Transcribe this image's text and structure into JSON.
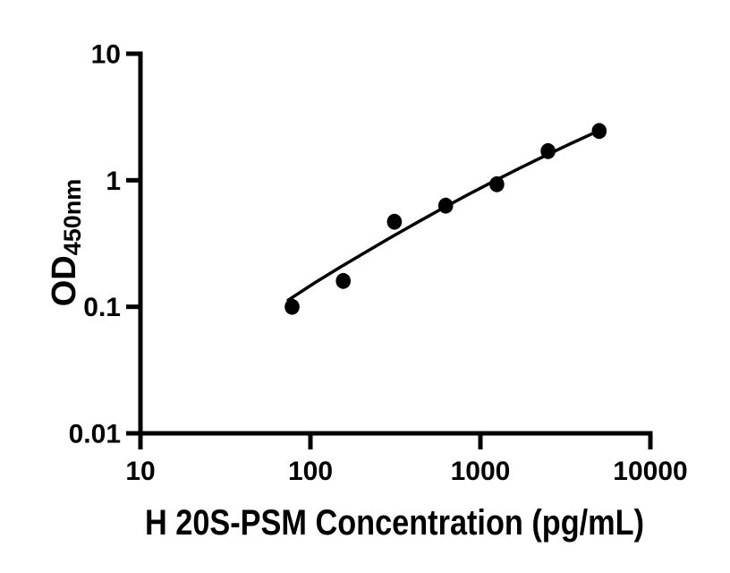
{
  "chart_data": {
    "type": "scatter",
    "title": "",
    "xlabel": "H 20S-PSM Concentration (pg/mL)",
    "ylabel_main": "OD",
    "ylabel_sub": "450nm",
    "x_scale": "log",
    "y_scale": "log",
    "xlim": [
      10,
      10000
    ],
    "ylim": [
      0.01,
      10
    ],
    "x_tick_labels": [
      "10",
      "100",
      "1000",
      "10000"
    ],
    "x_tick_values": [
      10,
      100,
      1000,
      10000
    ],
    "y_tick_labels": [
      "10",
      "1",
      "0.1",
      "0.01"
    ],
    "y_tick_values": [
      10,
      1,
      0.1,
      0.01
    ],
    "grid": false,
    "legend": "none",
    "series": [
      {
        "name": "standard-curve-points",
        "marker": "filled-circle",
        "color": "#000000",
        "x": [
          78,
          156,
          312,
          625,
          1250,
          2500,
          5000
        ],
        "y": [
          0.1,
          0.16,
          0.47,
          0.63,
          0.93,
          1.7,
          2.45
        ]
      }
    ],
    "fit_line": {
      "name": "fitted-curve",
      "color": "#000000",
      "points": [
        [
          74,
          0.113
        ],
        [
          107,
          0.156
        ],
        [
          151,
          0.207
        ],
        [
          214,
          0.273
        ],
        [
          302,
          0.358
        ],
        [
          427,
          0.466
        ],
        [
          603,
          0.603
        ],
        [
          851,
          0.773
        ],
        [
          1202,
          0.984
        ],
        [
          1698,
          1.244
        ],
        [
          2399,
          1.561
        ],
        [
          3388,
          1.946
        ],
        [
          5000,
          2.47
        ]
      ]
    },
    "colors": {
      "background": "#ffffff",
      "ink": "#000000"
    }
  }
}
